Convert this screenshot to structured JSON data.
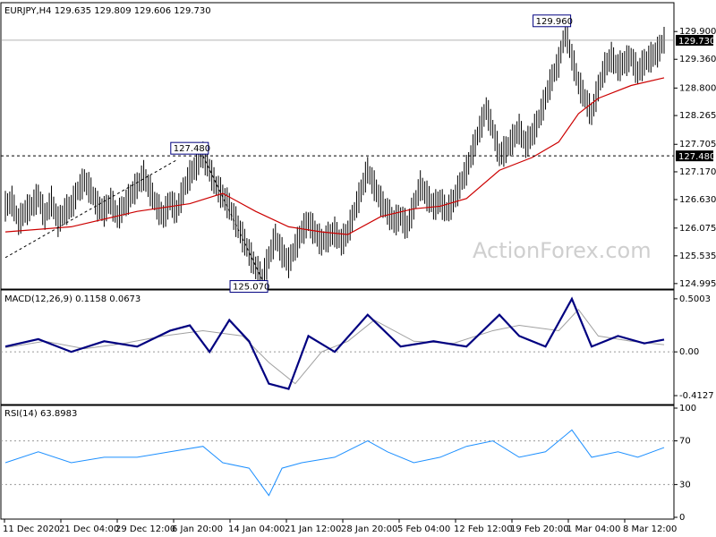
{
  "watermark": "ActionForex.com",
  "colors": {
    "background": "#ffffff",
    "price_bars": "#000000",
    "moving_average": "#cc0000",
    "macd_line": "#000080",
    "macd_signal": "#a0a0a0",
    "rsi_line": "#1e90ff",
    "dashed_level": "#000000",
    "panel_border": "#000000"
  },
  "chart_data": [
    {
      "type": "ohlc",
      "title": "EURJPY,H4  129.635 129.809 129.606 129.730",
      "symbol": "EURJPY",
      "timeframe": "H4",
      "ohlc_last": {
        "open": 129.635,
        "high": 129.809,
        "low": 129.606,
        "close": 129.73
      },
      "ylim": [
        124.94,
        130.2
      ],
      "y_ticks": [
        "129.900",
        "129.360",
        "128.800",
        "128.265",
        "127.705",
        "127.170",
        "126.630",
        "126.075",
        "125.535",
        "124.995"
      ],
      "current_price_label": "129.730",
      "horizontal_level": {
        "value": 127.48,
        "label": "127.480"
      },
      "annotations": [
        {
          "label": "127.480",
          "value": 127.48,
          "date": "7 Jan"
        },
        {
          "label": "125.070",
          "value": 125.07,
          "date": "15 Jan"
        },
        {
          "label": "129.960",
          "value": 129.96,
          "date": "24 Feb"
        }
      ],
      "trend_lines": [
        {
          "from": {
            "date": "11 Dec",
            "value": 125.5
          },
          "to": {
            "date": "5 Jan",
            "value": 127.4
          }
        },
        {
          "from": {
            "date": "7 Jan",
            "value": 127.48
          },
          "to": {
            "date": "15 Jan",
            "value": 125.07
          }
        }
      ],
      "series": [
        {
          "kind": "price",
          "points": [
            [
              0,
              126.5
            ],
            [
              1,
              126.6
            ],
            [
              2,
              126.2
            ],
            [
              3,
              126.4
            ],
            [
              4,
              126.5
            ],
            [
              5,
              126.7
            ],
            [
              6,
              126.3
            ],
            [
              7,
              126.6
            ],
            [
              8,
              126.2
            ],
            [
              9,
              126.4
            ],
            [
              10,
              126.5
            ],
            [
              11,
              126.8
            ],
            [
              12,
              127.0
            ],
            [
              13,
              126.8
            ],
            [
              14,
              126.5
            ],
            [
              15,
              126.4
            ],
            [
              16,
              126.6
            ],
            [
              17,
              126.3
            ],
            [
              18,
              126.5
            ],
            [
              19,
              126.7
            ],
            [
              20,
              126.9
            ],
            [
              21,
              127.1
            ],
            [
              22,
              126.8
            ],
            [
              23,
              126.5
            ],
            [
              24,
              126.3
            ],
            [
              25,
              126.6
            ],
            [
              26,
              126.4
            ],
            [
              27,
              126.8
            ],
            [
              28,
              127.1
            ],
            [
              29,
              127.3
            ],
            [
              30,
              127.5
            ],
            [
              31,
              127.2
            ],
            [
              32,
              126.9
            ],
            [
              33,
              126.7
            ],
            [
              34,
              126.5
            ],
            [
              35,
              126.2
            ],
            [
              36,
              125.9
            ],
            [
              37,
              125.6
            ],
            [
              38,
              125.3
            ],
            [
              39,
              125.1
            ],
            [
              40,
              125.5
            ],
            [
              41,
              125.9
            ],
            [
              42,
              125.6
            ],
            [
              43,
              125.4
            ],
            [
              44,
              125.7
            ],
            [
              45,
              126.0
            ],
            [
              46,
              126.2
            ],
            [
              47,
              126.0
            ],
            [
              48,
              125.8
            ],
            [
              49,
              125.9
            ],
            [
              50,
              126.0
            ],
            [
              51,
              125.8
            ],
            [
              52,
              126.0
            ],
            [
              53,
              126.4
            ],
            [
              54,
              126.8
            ],
            [
              55,
              127.2
            ],
            [
              56,
              126.9
            ],
            [
              57,
              126.6
            ],
            [
              58,
              126.4
            ],
            [
              59,
              126.2
            ],
            [
              60,
              126.3
            ],
            [
              61,
              126.1
            ],
            [
              62,
              126.5
            ],
            [
              63,
              126.9
            ],
            [
              64,
              126.7
            ],
            [
              65,
              126.5
            ],
            [
              66,
              126.6
            ],
            [
              67,
              126.4
            ],
            [
              68,
              126.6
            ],
            [
              69,
              126.9
            ],
            [
              70,
              127.2
            ],
            [
              71,
              127.6
            ],
            [
              72,
              128.0
            ],
            [
              73,
              128.4
            ],
            [
              74,
              128.0
            ],
            [
              75,
              127.5
            ],
            [
              76,
              127.6
            ],
            [
              77,
              127.8
            ],
            [
              78,
              128.0
            ],
            [
              79,
              127.7
            ],
            [
              80,
              127.9
            ],
            [
              81,
              128.2
            ],
            [
              82,
              128.6
            ],
            [
              83,
              129.0
            ],
            [
              84,
              129.3
            ],
            [
              85,
              129.9
            ],
            [
              86,
              129.4
            ],
            [
              87,
              128.9
            ],
            [
              88,
              128.6
            ],
            [
              89,
              128.3
            ],
            [
              90,
              128.8
            ],
            [
              91,
              129.2
            ],
            [
              92,
              129.4
            ],
            [
              93,
              129.2
            ],
            [
              94,
              129.3
            ],
            [
              95,
              129.4
            ],
            [
              96,
              129.1
            ],
            [
              97,
              129.3
            ],
            [
              98,
              129.4
            ],
            [
              99,
              129.5
            ],
            [
              100,
              129.73
            ]
          ]
        },
        {
          "kind": "moving_average",
          "points": [
            [
              0,
              126.0
            ],
            [
              10,
              126.1
            ],
            [
              20,
              126.4
            ],
            [
              28,
              126.55
            ],
            [
              33,
              126.75
            ],
            [
              38,
              126.4
            ],
            [
              43,
              126.1
            ],
            [
              48,
              126.0
            ],
            [
              52,
              125.95
            ],
            [
              57,
              126.3
            ],
            [
              62,
              126.45
            ],
            [
              66,
              126.5
            ],
            [
              70,
              126.65
            ],
            [
              75,
              127.2
            ],
            [
              80,
              127.45
            ],
            [
              84,
              127.75
            ],
            [
              87,
              128.3
            ],
            [
              90,
              128.6
            ],
            [
              95,
              128.85
            ],
            [
              100,
              129.0
            ]
          ]
        }
      ]
    },
    {
      "type": "line",
      "title": "MACD(12,26,9) 0.1158 0.0673",
      "indicator": "MACD(12,26,9)",
      "values_last": {
        "macd": 0.1158,
        "signal": 0.0673
      },
      "ylim": [
        -0.48,
        0.55
      ],
      "y_ticks": [
        "0.5003",
        "0.00",
        "-0.4127"
      ],
      "series": [
        {
          "kind": "macd",
          "points": [
            [
              0,
              0.05
            ],
            [
              5,
              0.12
            ],
            [
              10,
              0.0
            ],
            [
              15,
              0.1
            ],
            [
              20,
              0.05
            ],
            [
              25,
              0.2
            ],
            [
              28,
              0.25
            ],
            [
              31,
              0.0
            ],
            [
              34,
              0.3
            ],
            [
              37,
              0.1
            ],
            [
              40,
              -0.3
            ],
            [
              43,
              -0.35
            ],
            [
              46,
              0.15
            ],
            [
              50,
              0.0
            ],
            [
              55,
              0.35
            ],
            [
              60,
              0.05
            ],
            [
              65,
              0.1
            ],
            [
              70,
              0.05
            ],
            [
              75,
              0.35
            ],
            [
              78,
              0.15
            ],
            [
              82,
              0.05
            ],
            [
              86,
              0.5
            ],
            [
              89,
              0.05
            ],
            [
              93,
              0.15
            ],
            [
              97,
              0.08
            ],
            [
              100,
              0.1158
            ]
          ]
        },
        {
          "kind": "signal",
          "points": [
            [
              0,
              0.04
            ],
            [
              6,
              0.1
            ],
            [
              12,
              0.03
            ],
            [
              18,
              0.08
            ],
            [
              24,
              0.15
            ],
            [
              30,
              0.2
            ],
            [
              36,
              0.15
            ],
            [
              40,
              -0.1
            ],
            [
              44,
              -0.3
            ],
            [
              48,
              0.0
            ],
            [
              52,
              0.1
            ],
            [
              56,
              0.3
            ],
            [
              62,
              0.1
            ],
            [
              68,
              0.08
            ],
            [
              74,
              0.2
            ],
            [
              78,
              0.25
            ],
            [
              84,
              0.2
            ],
            [
              87,
              0.4
            ],
            [
              90,
              0.15
            ],
            [
              95,
              0.1
            ],
            [
              100,
              0.0673
            ]
          ]
        }
      ]
    },
    {
      "type": "line",
      "title": "RSI(14) 63.8983",
      "indicator": "RSI(14)",
      "value_last": 63.8983,
      "ylim": [
        0,
        100
      ],
      "y_ticks": [
        "100",
        "70",
        "30",
        "0"
      ],
      "levels": [
        70,
        30
      ],
      "series": [
        {
          "kind": "rsi",
          "points": [
            [
              0,
              50
            ],
            [
              5,
              60
            ],
            [
              10,
              50
            ],
            [
              15,
              55
            ],
            [
              20,
              55
            ],
            [
              25,
              60
            ],
            [
              30,
              65
            ],
            [
              33,
              50
            ],
            [
              37,
              45
            ],
            [
              40,
              20
            ],
            [
              42,
              45
            ],
            [
              45,
              50
            ],
            [
              50,
              55
            ],
            [
              55,
              70
            ],
            [
              58,
              60
            ],
            [
              62,
              50
            ],
            [
              66,
              55
            ],
            [
              70,
              65
            ],
            [
              74,
              70
            ],
            [
              78,
              55
            ],
            [
              82,
              60
            ],
            [
              86,
              80
            ],
            [
              89,
              55
            ],
            [
              93,
              60
            ],
            [
              96,
              55
            ],
            [
              100,
              63.9
            ]
          ]
        }
      ]
    }
  ],
  "x_axis": {
    "labels": [
      "11 Dec 2020",
      "21 Dec 04:00",
      "29 Dec 12:00",
      "6 Jan 20:00",
      "14 Jan 04:00",
      "21 Jan 12:00",
      "28 Jan 20:00",
      "5 Feb 04:00",
      "12 Feb 12:00",
      "19 Feb 20:00",
      "1 Mar 04:00",
      "8 Mar 12:00"
    ]
  }
}
